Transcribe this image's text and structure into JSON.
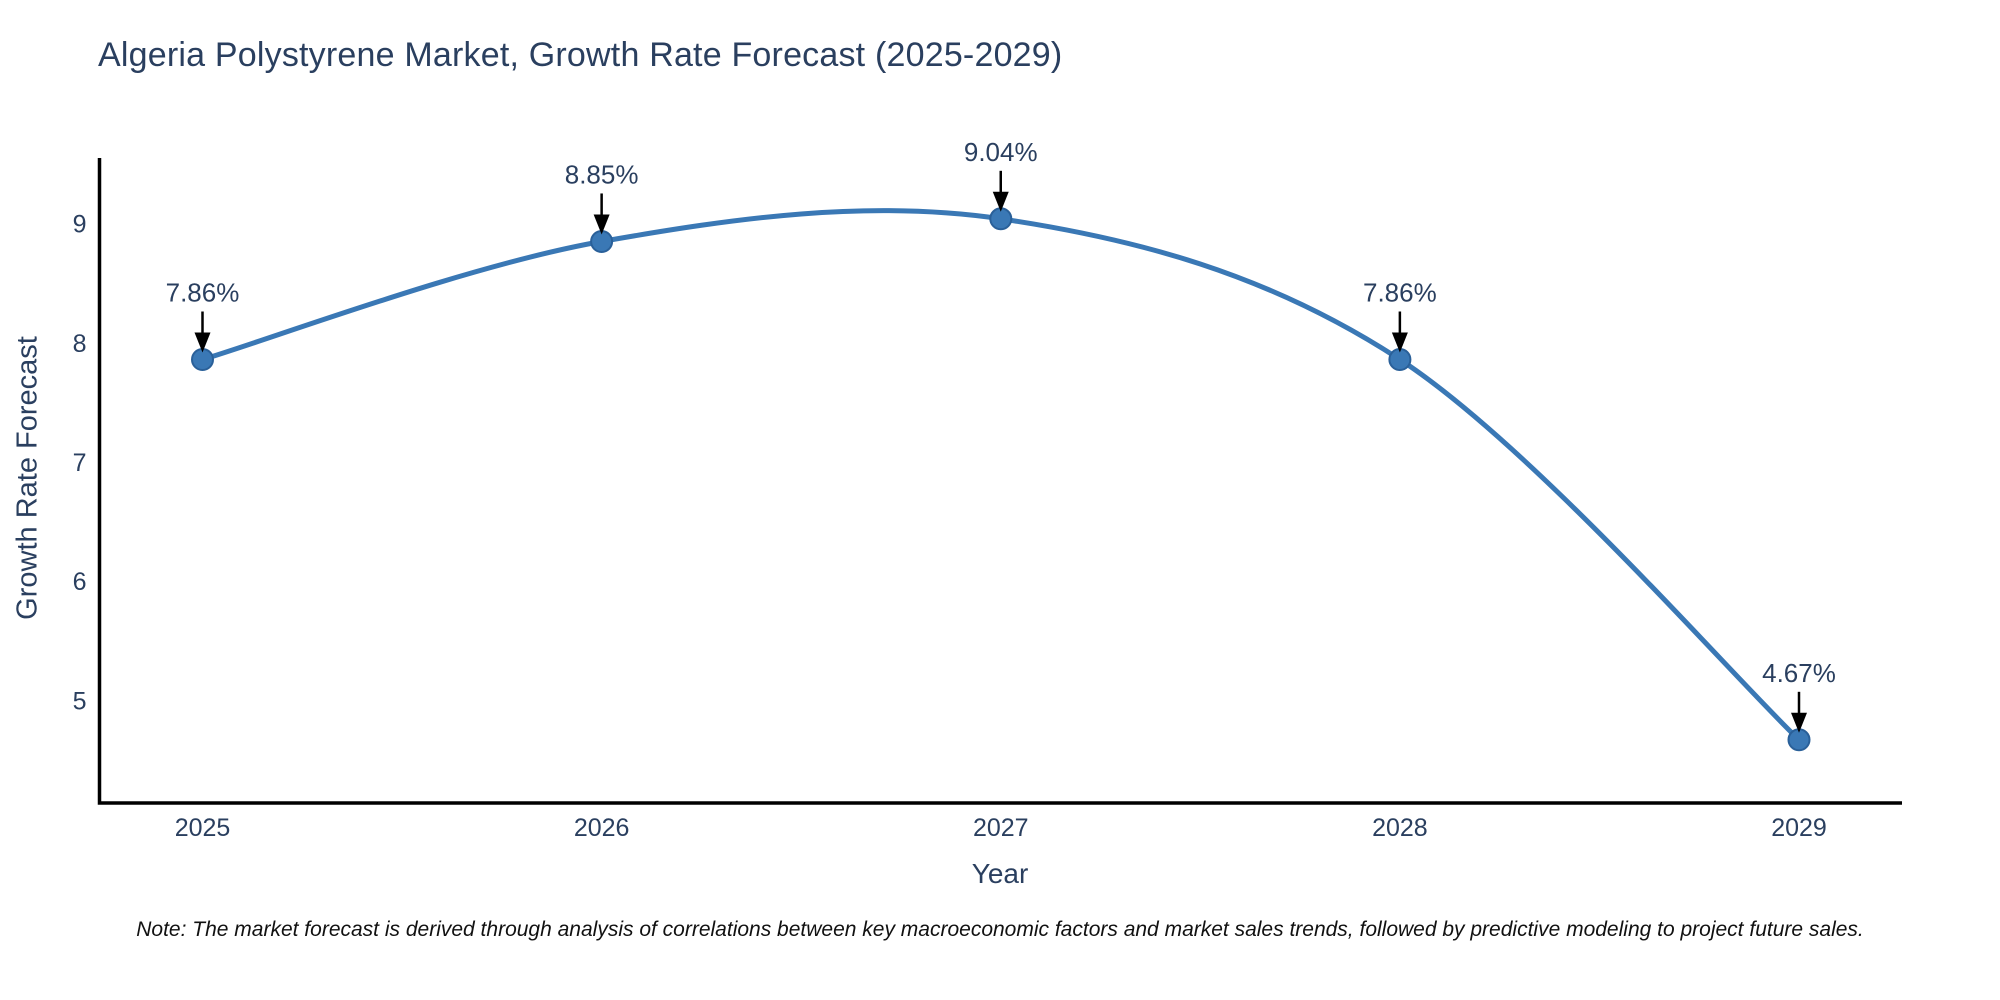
{
  "chart_data": {
    "type": "line",
    "title": "Algeria Polystyrene Market, Growth Rate Forecast (2025-2029)",
    "xlabel": "Year",
    "ylabel": "Growth Rate Forecast",
    "categories": [
      "2025",
      "2026",
      "2027",
      "2028",
      "2029"
    ],
    "values": [
      7.86,
      8.85,
      9.04,
      7.86,
      4.67
    ],
    "point_labels": [
      "7.86%",
      "8.85%",
      "9.04%",
      "7.86%",
      "4.67%"
    ],
    "yticks": [
      5,
      6,
      7,
      8,
      9
    ],
    "ylim": [
      4.14,
      9.55
    ],
    "line_shape": "spline",
    "grid": false,
    "legend": "none",
    "colors": {
      "line": "#3a78b5",
      "marker_fill": "#3a78b5",
      "marker_edge": "#2a6099",
      "axis": "#000000",
      "tick_text": "#2a3f5f",
      "annotation_text": "#2a3f5f",
      "annotation_arrow": "#000000",
      "title_text": "#2a3f5f",
      "note_text": "#111111",
      "background": "#ffffff"
    },
    "note": "Note: The market forecast is derived through analysis of correlations between key macroeconomic factors and market sales trends, followed by predictive modeling to project future sales."
  }
}
